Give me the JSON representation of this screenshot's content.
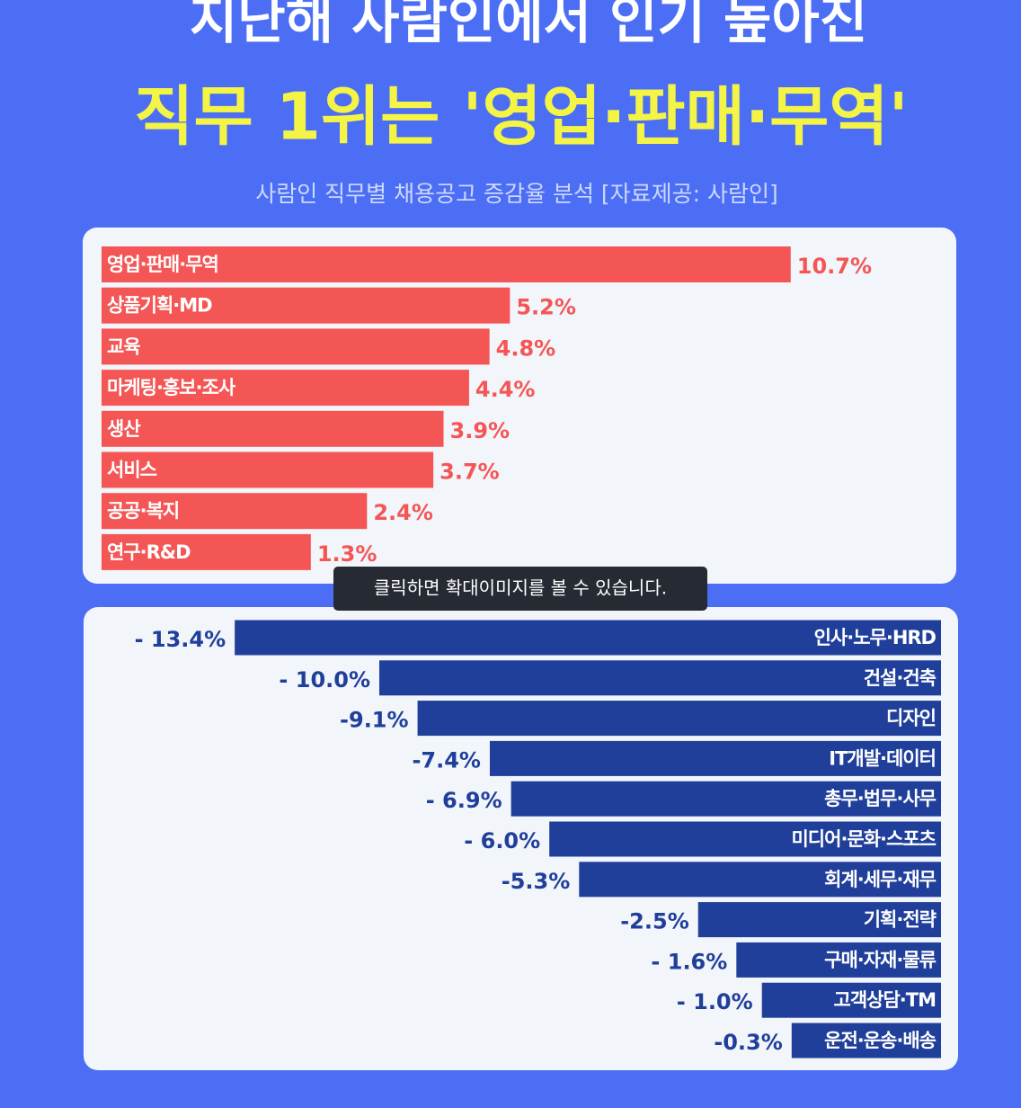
{
  "header": {
    "title_line1": "지난해 사람인에서 인기 높아진",
    "title_line2": "직무 1위는 '영업·판매·무역'",
    "subtitle": "사람인 직무별 채용공고 증감율 분석 [자료제공: 사람인]"
  },
  "chart_data": [
    {
      "type": "bar",
      "orientation": "horizontal",
      "color": "#f45656",
      "categories": [
        "영업·판매·무역",
        "상품기획·MD",
        "교육",
        "마케팅·홍보·조사",
        "생산",
        "서비스",
        "공공·복지",
        "연구·R&D"
      ],
      "values": [
        10.7,
        5.2,
        4.8,
        4.4,
        3.9,
        3.7,
        2.4,
        1.3
      ],
      "value_labels": [
        "10.7%",
        "5.2%",
        "4.8%",
        "4.4%",
        "3.9%",
        "3.7%",
        "2.4%",
        "1.3%"
      ]
    },
    {
      "type": "bar",
      "orientation": "horizontal",
      "color": "#1f3f9a",
      "categories": [
        "인사·노무·HRD",
        "건설·건축",
        "디자인",
        "IT개발·데이터",
        "총무·법무·사무",
        "미디어·문화·스포츠",
        "회계·세무·재무",
        "기획·전략",
        "구매·자재·물류",
        "고객상담·TM",
        "운전·운송·배송"
      ],
      "values": [
        -13.4,
        -10.0,
        -9.1,
        -7.4,
        -6.9,
        -6.0,
        -5.3,
        -2.5,
        -1.6,
        -1.0,
        -0.3
      ],
      "value_labels": [
        "- 13.4%",
        "- 10.0%",
        "-9.1%",
        "-7.4%",
        "- 6.9%",
        "- 6.0%",
        "-5.3%",
        "-2.5%",
        "- 1.6%",
        "- 1.0%",
        "-0.3%"
      ]
    }
  ],
  "tooltip": "클릭하면 확대이미지를 볼 수 있습니다."
}
